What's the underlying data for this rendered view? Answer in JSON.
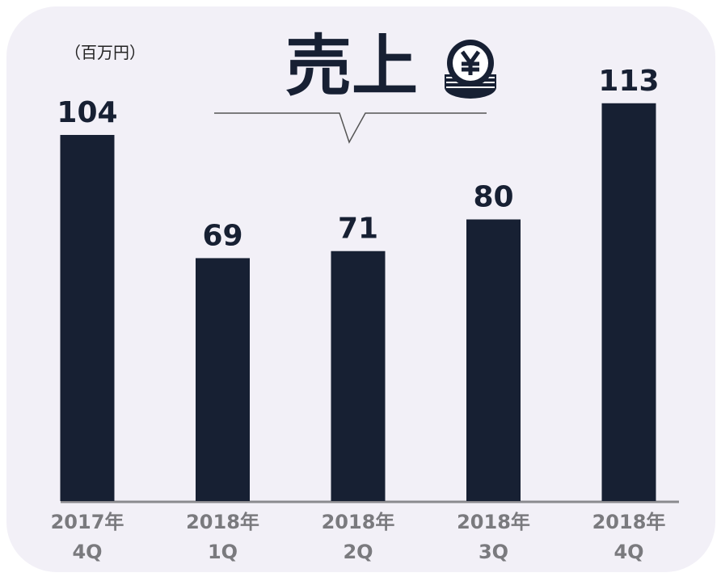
{
  "chart_data": {
    "type": "bar",
    "title": "売上",
    "unit_label": "（百万円）",
    "categories": [
      "2017年\n4Q",
      "2018年\n1Q",
      "2018年\n2Q",
      "2018年\n3Q",
      "2018年\n4Q"
    ],
    "values": [
      104,
      69,
      71,
      80,
      113
    ],
    "color": "#172033"
  }
}
